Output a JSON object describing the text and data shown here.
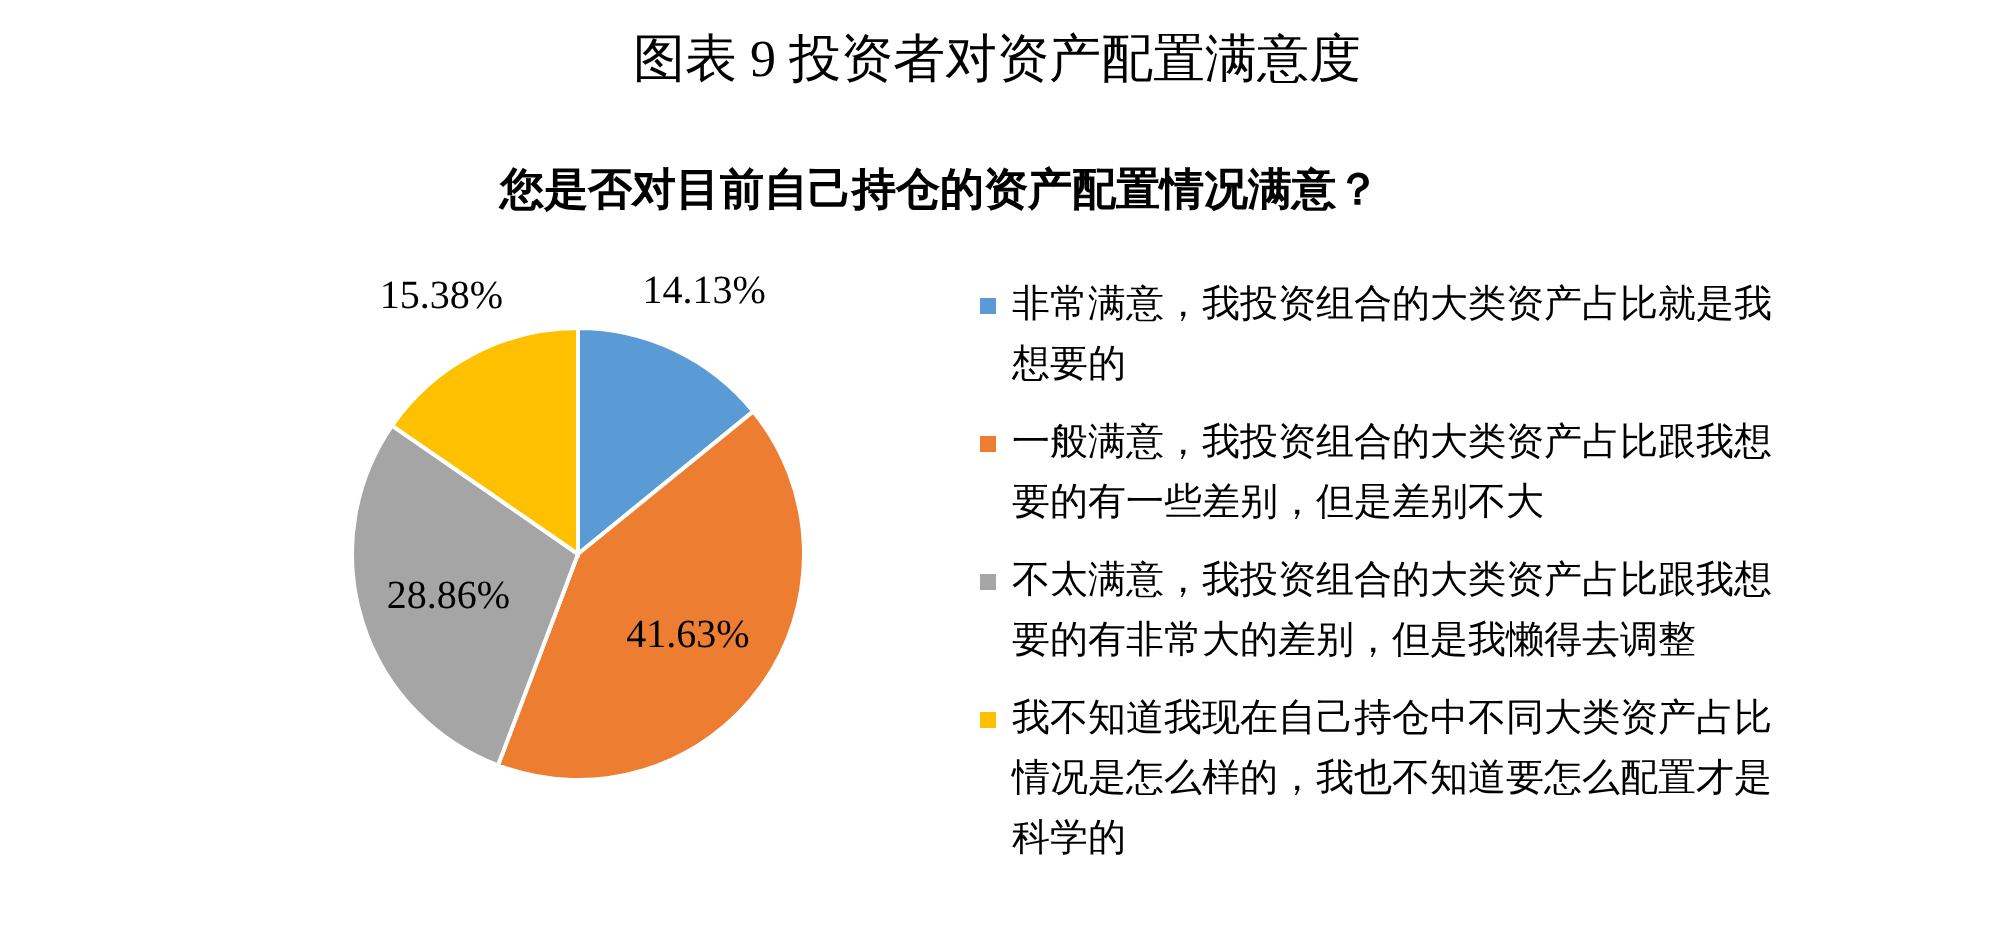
{
  "chart_data": {
    "type": "pie",
    "title": "图表 9 投资者对资产配置满意度",
    "subtitle": "您是否对目前自己持仓的资产配置情况满意？",
    "categories": [
      "非常满意，我投资组合的大类资产占比就是我想要的",
      "一般满意，我投资组合的大类资产占比跟我想要的有一些差别，但是差别不大",
      "不太满意，我投资组合的大类资产占比跟我想要的有非常大的差别，但是我懒得去调整",
      "我不知道我现在自己持仓中不同大类资产占比情况是怎么样的，我也不知道要怎么配置才是科学的"
    ],
    "values": [
      14.13,
      41.63,
      28.86,
      15.38
    ],
    "colors": [
      "#5b9bd5",
      "#ed7d31",
      "#a5a5a5",
      "#ffc000"
    ],
    "value_labels": [
      "14.13%",
      "41.63%",
      "28.86%",
      "15.38%"
    ],
    "legend": "right"
  }
}
